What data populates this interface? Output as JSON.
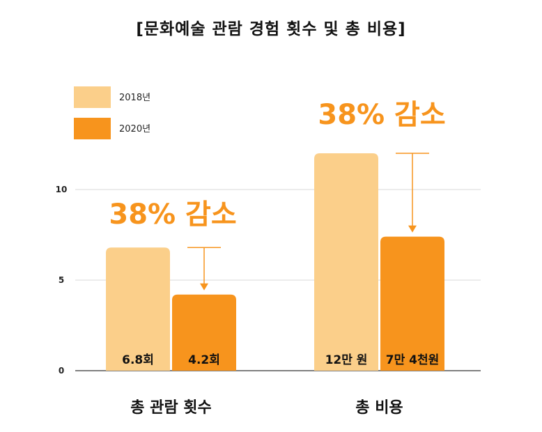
{
  "title": "[문화예술 관람 경험 횟수 및 총 비용]",
  "colors": {
    "y2018": "#fbcf8a",
    "y2020": "#f7941d",
    "grid": "#d9d9d9",
    "axis": "#555555"
  },
  "chart_data": {
    "type": "bar",
    "title": "[문화예술 관람 경험 횟수 및 총 비용]",
    "categories": [
      "총 관람 횟수",
      "총 비용"
    ],
    "series": [
      {
        "name": "2018년",
        "values": [
          6.8,
          12
        ]
      },
      {
        "name": "2020년",
        "values": [
          4.2,
          7.4
        ]
      }
    ],
    "value_labels": [
      [
        "6.8회",
        "4.2회"
      ],
      [
        "12만 원",
        "7만 4천원"
      ]
    ],
    "annotations": [
      "38% 감소",
      "38% 감소"
    ],
    "yticks": [
      0,
      5,
      10
    ],
    "ylim": [
      0,
      14.5
    ],
    "grid": true,
    "legend_position": "top-left"
  }
}
